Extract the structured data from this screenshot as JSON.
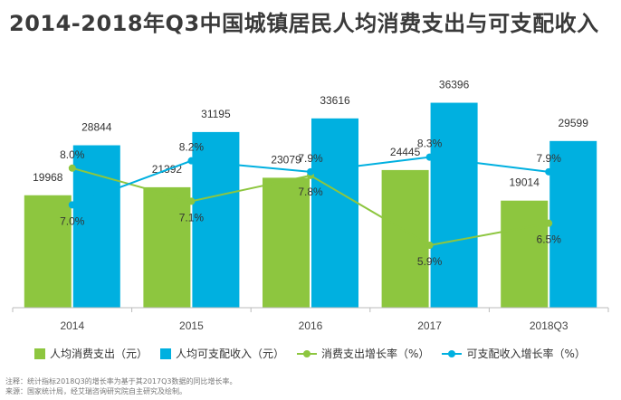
{
  "title": "2014-2018年Q3中国城镇居民人均消费支出与可支配收入",
  "colors": {
    "consumption": "#8dc63f",
    "income": "#00b0e0",
    "axis": "#bbbbbb"
  },
  "chart_data": {
    "type": "bar",
    "categories": [
      "2014",
      "2015",
      "2016",
      "2017",
      "2018Q3"
    ],
    "series": [
      {
        "name": "人均消费支出（元）",
        "type": "bar",
        "values": [
          19968,
          21392,
          23079,
          24445,
          19014
        ]
      },
      {
        "name": "人均可支配收入（元）",
        "type": "bar",
        "values": [
          28844,
          31195,
          33616,
          36396,
          29599
        ]
      },
      {
        "name": "消费支出增长率（%）",
        "type": "line",
        "values": [
          8.0,
          7.1,
          7.8,
          5.9,
          6.5
        ],
        "labels": [
          "8.0%",
          "7.1%",
          "7.8%",
          "5.9%",
          "6.5%"
        ]
      },
      {
        "name": "可支配收入增长率（%）",
        "type": "line",
        "values": [
          7.0,
          8.2,
          7.9,
          8.3,
          7.9
        ],
        "labels": [
          "7.0%",
          "8.2%",
          "7.9%",
          "8.3%",
          "7.9%"
        ]
      }
    ],
    "ylim": [
      0,
      45000
    ],
    "line_ylim": [
      4.2,
      11.1
    ],
    "legend_position": "bottom"
  },
  "legend": {
    "consumption": "人均消费支出（元）",
    "income": "人均可支配收入（元）",
    "consumption_growth": "消费支出增长率（%）",
    "income_growth": "可支配收入增长率（%）"
  },
  "notes": {
    "line1": "注释：统计指标2018Q3的增长率为基于其2017Q3数据的同比增长率。",
    "line2": "来源：国家统计局，经艾瑞咨询研究院自主研究及绘制。"
  }
}
